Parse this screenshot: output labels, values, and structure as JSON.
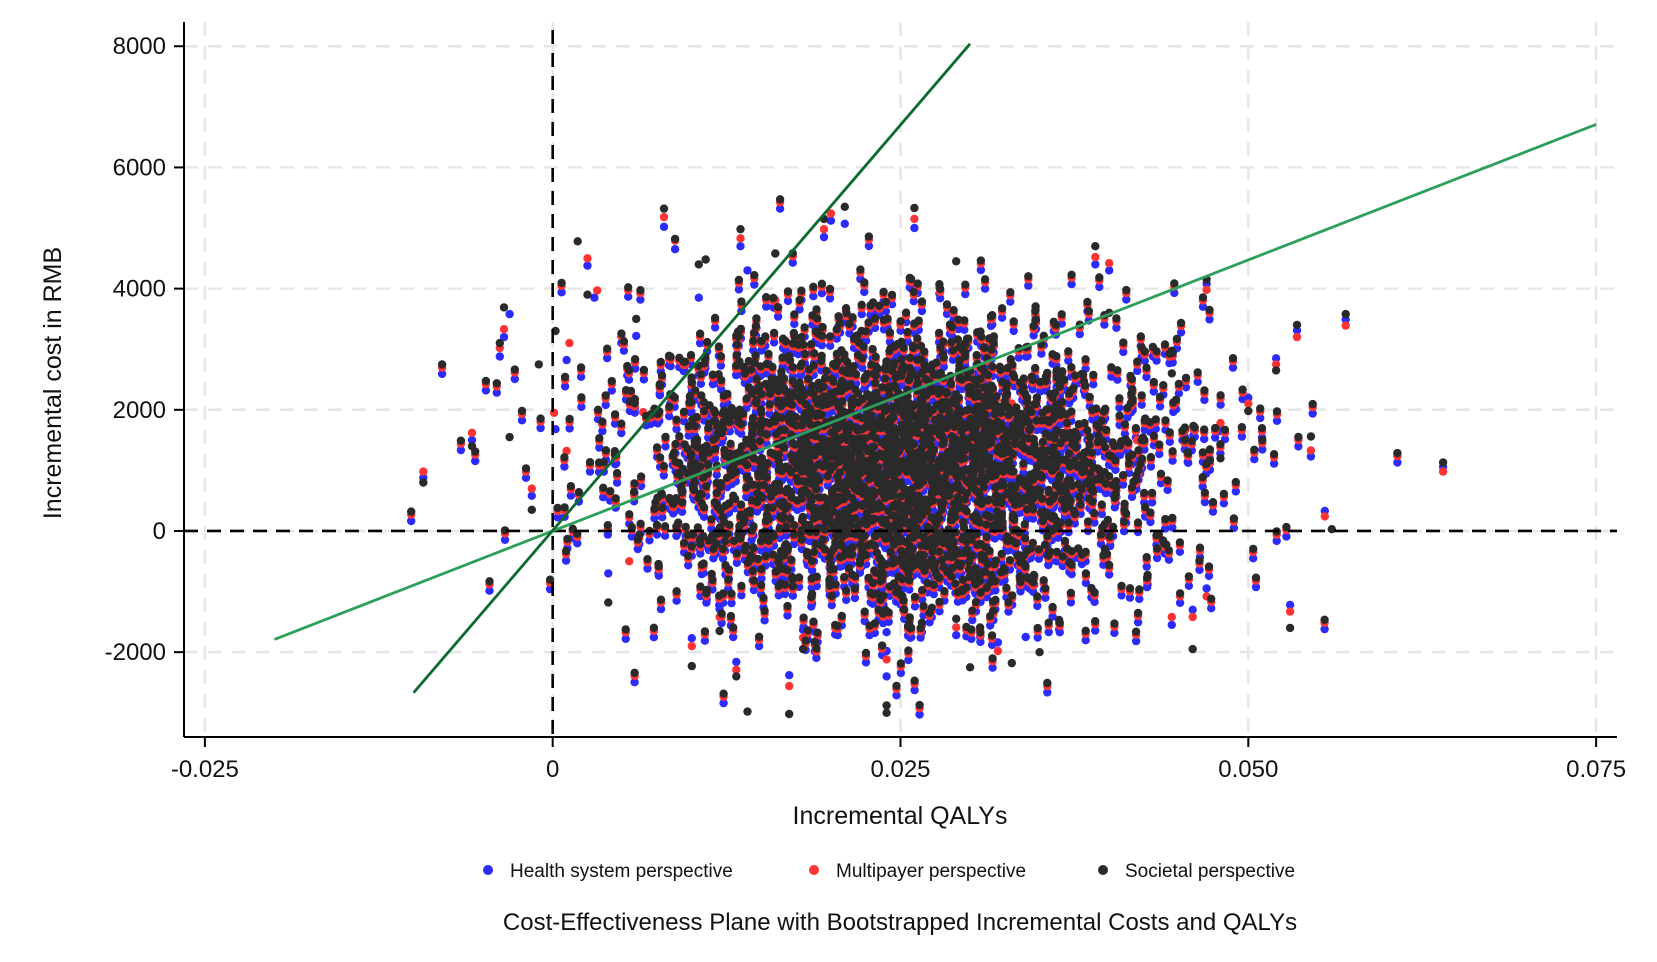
{
  "chart_data": {
    "type": "scatter",
    "title": "",
    "caption": "Cost-Effectiveness Plane with Bootstrapped Incremental Costs and QALYs",
    "xlabel": "Incremental QALYs",
    "ylabel": "Incremental cost in RMB",
    "xlim": [
      -0.0265,
      0.0765
    ],
    "ylim": [
      -3400,
      8400
    ],
    "x_ticks": [
      -0.025,
      0,
      0.025,
      0.05,
      0.075
    ],
    "x_tick_labels": [
      "-0.025",
      "0",
      "0.025",
      "0.050",
      "0.075"
    ],
    "y_ticks": [
      -2000,
      0,
      2000,
      4000,
      6000,
      8000
    ],
    "y_tick_labels": [
      "-2000",
      "0",
      "2000",
      "4000",
      "6000",
      "8000"
    ],
    "grid": true,
    "legend_position": "bottom",
    "colors": {
      "health": "#2b2bff",
      "multipayer": "#ff3333",
      "societal": "#2a2a2a",
      "threshold_low": "#2e9e5b",
      "threshold_high": "#0b6b2e",
      "grid": "#e6e6e6",
      "axis": "#000000"
    },
    "legend": [
      {
        "key": "health",
        "label": "Health system perspective"
      },
      {
        "key": "multipayer",
        "label": "Multipayer perspective"
      },
      {
        "key": "societal",
        "label": "Societal perspective"
      }
    ],
    "reference_lines": [
      {
        "type": "vertical",
        "x": 0,
        "style": "dashed"
      },
      {
        "type": "horizontal",
        "y": 0,
        "style": "dashed"
      }
    ],
    "threshold_lines": [
      {
        "name": "low",
        "x": [
          -0.02,
          0.075
        ],
        "y": [
          -1790,
          6710
        ],
        "color_key": "threshold_low"
      },
      {
        "name": "high",
        "x": [
          -0.01,
          0.03
        ],
        "y": [
          -2670,
          8040
        ],
        "color_key": "threshold_high"
      }
    ],
    "series": [
      {
        "key": "health",
        "points": [
          [
            -0.0093,
            880
          ],
          [
            -0.0058,
            1500
          ],
          [
            -0.0038,
            2880
          ],
          [
            -0.0035,
            3200
          ],
          [
            -0.0031,
            3580
          ],
          [
            -0.0015,
            580
          ],
          [
            0.0002,
            1680
          ],
          [
            0.001,
            2820
          ],
          [
            0.0025,
            4380
          ],
          [
            0.003,
            3850
          ],
          [
            0.004,
            -700
          ],
          [
            0.006,
            3220
          ],
          [
            0.008,
            5020
          ],
          [
            0.0088,
            4650
          ],
          [
            0.01,
            -1770
          ],
          [
            0.0105,
            3850
          ],
          [
            0.012,
            -1290
          ],
          [
            0.0132,
            -2160
          ],
          [
            0.0135,
            4700
          ],
          [
            0.014,
            4300
          ],
          [
            0.016,
            3680
          ],
          [
            0.017,
            -2380
          ],
          [
            0.0195,
            4850
          ],
          [
            0.02,
            5120
          ],
          [
            0.021,
            5070
          ],
          [
            0.024,
            -2400
          ],
          [
            0.024,
            -1980
          ],
          [
            0.026,
            5000
          ],
          [
            0.024,
            -1670
          ],
          [
            0.032,
            -1840
          ],
          [
            0.034,
            -1750
          ],
          [
            0.039,
            4400
          ],
          [
            0.04,
            4300
          ],
          [
            0.046,
            -1300
          ],
          [
            0.047,
            -950
          ],
          [
            0.053,
            -1220
          ],
          [
            0.0535,
            3310
          ],
          [
            0.0545,
            1230
          ],
          [
            0.0555,
            330
          ],
          [
            0.057,
            3490
          ],
          [
            0.064,
            1060
          ],
          [
            0.047,
            4080
          ],
          [
            0.0445,
            -1550
          ],
          [
            0.048,
            1650
          ],
          [
            0.05,
            2200
          ],
          [
            0.052,
            2850
          ],
          [
            0.029,
            -1720
          ],
          [
            0.018,
            -1630
          ]
        ]
      },
      {
        "key": "multipayer",
        "points": [
          [
            -0.0093,
            980
          ],
          [
            -0.0058,
            1620
          ],
          [
            -0.0038,
            3020
          ],
          [
            -0.0035,
            3330
          ],
          [
            -0.0015,
            700
          ],
          [
            0.0001,
            1950
          ],
          [
            0.0012,
            3100
          ],
          [
            0.0025,
            4500
          ],
          [
            0.0032,
            3970
          ],
          [
            0.0055,
            -500
          ],
          [
            0.008,
            5180
          ],
          [
            0.0088,
            4790
          ],
          [
            0.01,
            -1900
          ],
          [
            0.012,
            -1420
          ],
          [
            0.0132,
            -2290
          ],
          [
            0.0135,
            4830
          ],
          [
            0.016,
            3810
          ],
          [
            0.017,
            -2560
          ],
          [
            0.0195,
            4980
          ],
          [
            0.02,
            5240
          ],
          [
            0.024,
            -2120
          ],
          [
            0.026,
            5150
          ],
          [
            0.032,
            -1980
          ],
          [
            0.039,
            4520
          ],
          [
            0.04,
            4420
          ],
          [
            0.046,
            -1420
          ],
          [
            0.047,
            -1080
          ],
          [
            0.053,
            -1330
          ],
          [
            0.0535,
            3200
          ],
          [
            0.0545,
            1330
          ],
          [
            0.0555,
            240
          ],
          [
            0.057,
            3390
          ],
          [
            0.064,
            980
          ],
          [
            0.047,
            3980
          ],
          [
            0.0445,
            -1420
          ],
          [
            0.048,
            1780
          ],
          [
            0.05,
            2100
          ],
          [
            0.052,
            2750
          ],
          [
            0.029,
            -1590
          ],
          [
            0.018,
            -1760
          ],
          [
            0.0065,
            1960
          ],
          [
            0.001,
            1320
          ],
          [
            0.015,
            2400
          ],
          [
            0.021,
            300
          ],
          [
            0.033,
            2100
          ],
          [
            0.037,
            800
          ],
          [
            0.042,
            1500
          ],
          [
            0.025,
            3400
          ]
        ]
      },
      {
        "key": "societal",
        "points": [
          [
            -0.0093,
            800
          ],
          [
            -0.0058,
            1400
          ],
          [
            -0.0038,
            3100
          ],
          [
            -0.0035,
            3690
          ],
          [
            -0.0031,
            1550
          ],
          [
            -0.0015,
            350
          ],
          [
            -0.001,
            2750
          ],
          [
            0.0002,
            3300
          ],
          [
            0.0018,
            4780
          ],
          [
            0.0025,
            3900
          ],
          [
            0.004,
            -1180
          ],
          [
            0.006,
            3500
          ],
          [
            0.008,
            5320
          ],
          [
            0.0088,
            4820
          ],
          [
            0.01,
            -2230
          ],
          [
            0.0105,
            4400
          ],
          [
            0.012,
            -1650
          ],
          [
            0.0132,
            -2400
          ],
          [
            0.0135,
            4980
          ],
          [
            0.014,
            -2980
          ],
          [
            0.016,
            4580
          ],
          [
            0.017,
            -3020
          ],
          [
            0.0195,
            5150
          ],
          [
            0.021,
            5350
          ],
          [
            0.024,
            -2880
          ],
          [
            0.024,
            -3000
          ],
          [
            0.026,
            5330
          ],
          [
            0.029,
            4450
          ],
          [
            0.03,
            -2250
          ],
          [
            0.033,
            -2180
          ],
          [
            0.035,
            -2000
          ],
          [
            0.039,
            4700
          ],
          [
            0.04,
            3600
          ],
          [
            0.046,
            -1950
          ],
          [
            0.047,
            4150
          ],
          [
            0.053,
            -1600
          ],
          [
            0.0535,
            3400
          ],
          [
            0.0545,
            1560
          ],
          [
            0.056,
            30
          ],
          [
            0.057,
            3580
          ],
          [
            0.064,
            1130
          ],
          [
            0.0445,
            2600
          ],
          [
            0.048,
            1200
          ],
          [
            0.05,
            1980
          ],
          [
            0.052,
            2650
          ],
          [
            0.029,
            -1450
          ],
          [
            0.018,
            -1950
          ],
          [
            0.011,
            4480
          ]
        ]
      }
    ],
    "cloud": {
      "center": [
        0.025,
        1000
      ],
      "sd": [
        0.0095,
        1200
      ],
      "points_per_series": 2800
    }
  }
}
